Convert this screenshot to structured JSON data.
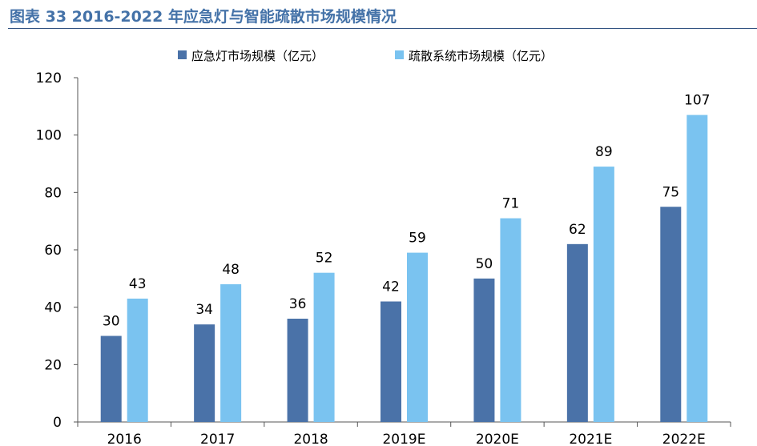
{
  "title": "图表 33 2016-2022 年应急灯与智能疏散市场规模情况",
  "colors": {
    "series1": "#4A72A8",
    "series2": "#7AC3F0",
    "title": "#4472A8"
  },
  "chart_data": {
    "type": "bar",
    "categories": [
      "2016",
      "2017",
      "2018",
      "2019E",
      "2020E",
      "2021E",
      "2022E"
    ],
    "series": [
      {
        "name": "应急灯市场规模（亿元）",
        "values": [
          30,
          34,
          36,
          42,
          50,
          62,
          75
        ]
      },
      {
        "name": "疏散系统市场规模（亿元）",
        "values": [
          43,
          48,
          52,
          59,
          71,
          89,
          107
        ]
      }
    ],
    "ylim": [
      0,
      120
    ],
    "yticks": [
      0,
      20,
      40,
      60,
      80,
      100,
      120
    ],
    "legend": "top-center",
    "grid": false,
    "data_labels": true
  }
}
